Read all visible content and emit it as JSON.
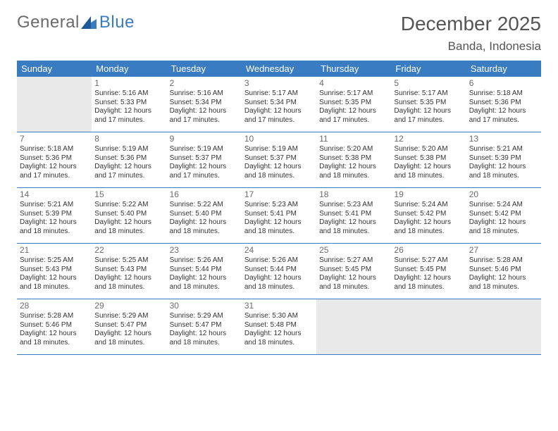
{
  "logo": {
    "word1": "General",
    "word2": "Blue"
  },
  "title": "December 2025",
  "location": "Banda, Indonesia",
  "colors": {
    "header_bg": "#3a7cc2",
    "divider": "#3a7cc2",
    "empty_bg": "#e9e9e9",
    "text": "#333333",
    "title_text": "#555555",
    "logo_gray": "#6b6b6b"
  },
  "weekdays": [
    "Sunday",
    "Monday",
    "Tuesday",
    "Wednesday",
    "Thursday",
    "Friday",
    "Saturday"
  ],
  "weeks": [
    [
      {
        "empty": true
      },
      {
        "n": "1",
        "sr": "Sunrise: 5:16 AM",
        "ss": "Sunset: 5:33 PM",
        "d1": "Daylight: 12 hours",
        "d2": "and 17 minutes."
      },
      {
        "n": "2",
        "sr": "Sunrise: 5:16 AM",
        "ss": "Sunset: 5:34 PM",
        "d1": "Daylight: 12 hours",
        "d2": "and 17 minutes."
      },
      {
        "n": "3",
        "sr": "Sunrise: 5:17 AM",
        "ss": "Sunset: 5:34 PM",
        "d1": "Daylight: 12 hours",
        "d2": "and 17 minutes."
      },
      {
        "n": "4",
        "sr": "Sunrise: 5:17 AM",
        "ss": "Sunset: 5:35 PM",
        "d1": "Daylight: 12 hours",
        "d2": "and 17 minutes."
      },
      {
        "n": "5",
        "sr": "Sunrise: 5:17 AM",
        "ss": "Sunset: 5:35 PM",
        "d1": "Daylight: 12 hours",
        "d2": "and 17 minutes."
      },
      {
        "n": "6",
        "sr": "Sunrise: 5:18 AM",
        "ss": "Sunset: 5:36 PM",
        "d1": "Daylight: 12 hours",
        "d2": "and 17 minutes."
      }
    ],
    [
      {
        "n": "7",
        "sr": "Sunrise: 5:18 AM",
        "ss": "Sunset: 5:36 PM",
        "d1": "Daylight: 12 hours",
        "d2": "and 17 minutes."
      },
      {
        "n": "8",
        "sr": "Sunrise: 5:19 AM",
        "ss": "Sunset: 5:36 PM",
        "d1": "Daylight: 12 hours",
        "d2": "and 17 minutes."
      },
      {
        "n": "9",
        "sr": "Sunrise: 5:19 AM",
        "ss": "Sunset: 5:37 PM",
        "d1": "Daylight: 12 hours",
        "d2": "and 17 minutes."
      },
      {
        "n": "10",
        "sr": "Sunrise: 5:19 AM",
        "ss": "Sunset: 5:37 PM",
        "d1": "Daylight: 12 hours",
        "d2": "and 18 minutes."
      },
      {
        "n": "11",
        "sr": "Sunrise: 5:20 AM",
        "ss": "Sunset: 5:38 PM",
        "d1": "Daylight: 12 hours",
        "d2": "and 18 minutes."
      },
      {
        "n": "12",
        "sr": "Sunrise: 5:20 AM",
        "ss": "Sunset: 5:38 PM",
        "d1": "Daylight: 12 hours",
        "d2": "and 18 minutes."
      },
      {
        "n": "13",
        "sr": "Sunrise: 5:21 AM",
        "ss": "Sunset: 5:39 PM",
        "d1": "Daylight: 12 hours",
        "d2": "and 18 minutes."
      }
    ],
    [
      {
        "n": "14",
        "sr": "Sunrise: 5:21 AM",
        "ss": "Sunset: 5:39 PM",
        "d1": "Daylight: 12 hours",
        "d2": "and 18 minutes."
      },
      {
        "n": "15",
        "sr": "Sunrise: 5:22 AM",
        "ss": "Sunset: 5:40 PM",
        "d1": "Daylight: 12 hours",
        "d2": "and 18 minutes."
      },
      {
        "n": "16",
        "sr": "Sunrise: 5:22 AM",
        "ss": "Sunset: 5:40 PM",
        "d1": "Daylight: 12 hours",
        "d2": "and 18 minutes."
      },
      {
        "n": "17",
        "sr": "Sunrise: 5:23 AM",
        "ss": "Sunset: 5:41 PM",
        "d1": "Daylight: 12 hours",
        "d2": "and 18 minutes."
      },
      {
        "n": "18",
        "sr": "Sunrise: 5:23 AM",
        "ss": "Sunset: 5:41 PM",
        "d1": "Daylight: 12 hours",
        "d2": "and 18 minutes."
      },
      {
        "n": "19",
        "sr": "Sunrise: 5:24 AM",
        "ss": "Sunset: 5:42 PM",
        "d1": "Daylight: 12 hours",
        "d2": "and 18 minutes."
      },
      {
        "n": "20",
        "sr": "Sunrise: 5:24 AM",
        "ss": "Sunset: 5:42 PM",
        "d1": "Daylight: 12 hours",
        "d2": "and 18 minutes."
      }
    ],
    [
      {
        "n": "21",
        "sr": "Sunrise: 5:25 AM",
        "ss": "Sunset: 5:43 PM",
        "d1": "Daylight: 12 hours",
        "d2": "and 18 minutes."
      },
      {
        "n": "22",
        "sr": "Sunrise: 5:25 AM",
        "ss": "Sunset: 5:43 PM",
        "d1": "Daylight: 12 hours",
        "d2": "and 18 minutes."
      },
      {
        "n": "23",
        "sr": "Sunrise: 5:26 AM",
        "ss": "Sunset: 5:44 PM",
        "d1": "Daylight: 12 hours",
        "d2": "and 18 minutes."
      },
      {
        "n": "24",
        "sr": "Sunrise: 5:26 AM",
        "ss": "Sunset: 5:44 PM",
        "d1": "Daylight: 12 hours",
        "d2": "and 18 minutes."
      },
      {
        "n": "25",
        "sr": "Sunrise: 5:27 AM",
        "ss": "Sunset: 5:45 PM",
        "d1": "Daylight: 12 hours",
        "d2": "and 18 minutes."
      },
      {
        "n": "26",
        "sr": "Sunrise: 5:27 AM",
        "ss": "Sunset: 5:45 PM",
        "d1": "Daylight: 12 hours",
        "d2": "and 18 minutes."
      },
      {
        "n": "27",
        "sr": "Sunrise: 5:28 AM",
        "ss": "Sunset: 5:46 PM",
        "d1": "Daylight: 12 hours",
        "d2": "and 18 minutes."
      }
    ],
    [
      {
        "n": "28",
        "sr": "Sunrise: 5:28 AM",
        "ss": "Sunset: 5:46 PM",
        "d1": "Daylight: 12 hours",
        "d2": "and 18 minutes."
      },
      {
        "n": "29",
        "sr": "Sunrise: 5:29 AM",
        "ss": "Sunset: 5:47 PM",
        "d1": "Daylight: 12 hours",
        "d2": "and 18 minutes."
      },
      {
        "n": "30",
        "sr": "Sunrise: 5:29 AM",
        "ss": "Sunset: 5:47 PM",
        "d1": "Daylight: 12 hours",
        "d2": "and 18 minutes."
      },
      {
        "n": "31",
        "sr": "Sunrise: 5:30 AM",
        "ss": "Sunset: 5:48 PM",
        "d1": "Daylight: 12 hours",
        "d2": "and 18 minutes."
      },
      {
        "empty": true
      },
      {
        "empty": true
      },
      {
        "empty": true
      }
    ]
  ]
}
